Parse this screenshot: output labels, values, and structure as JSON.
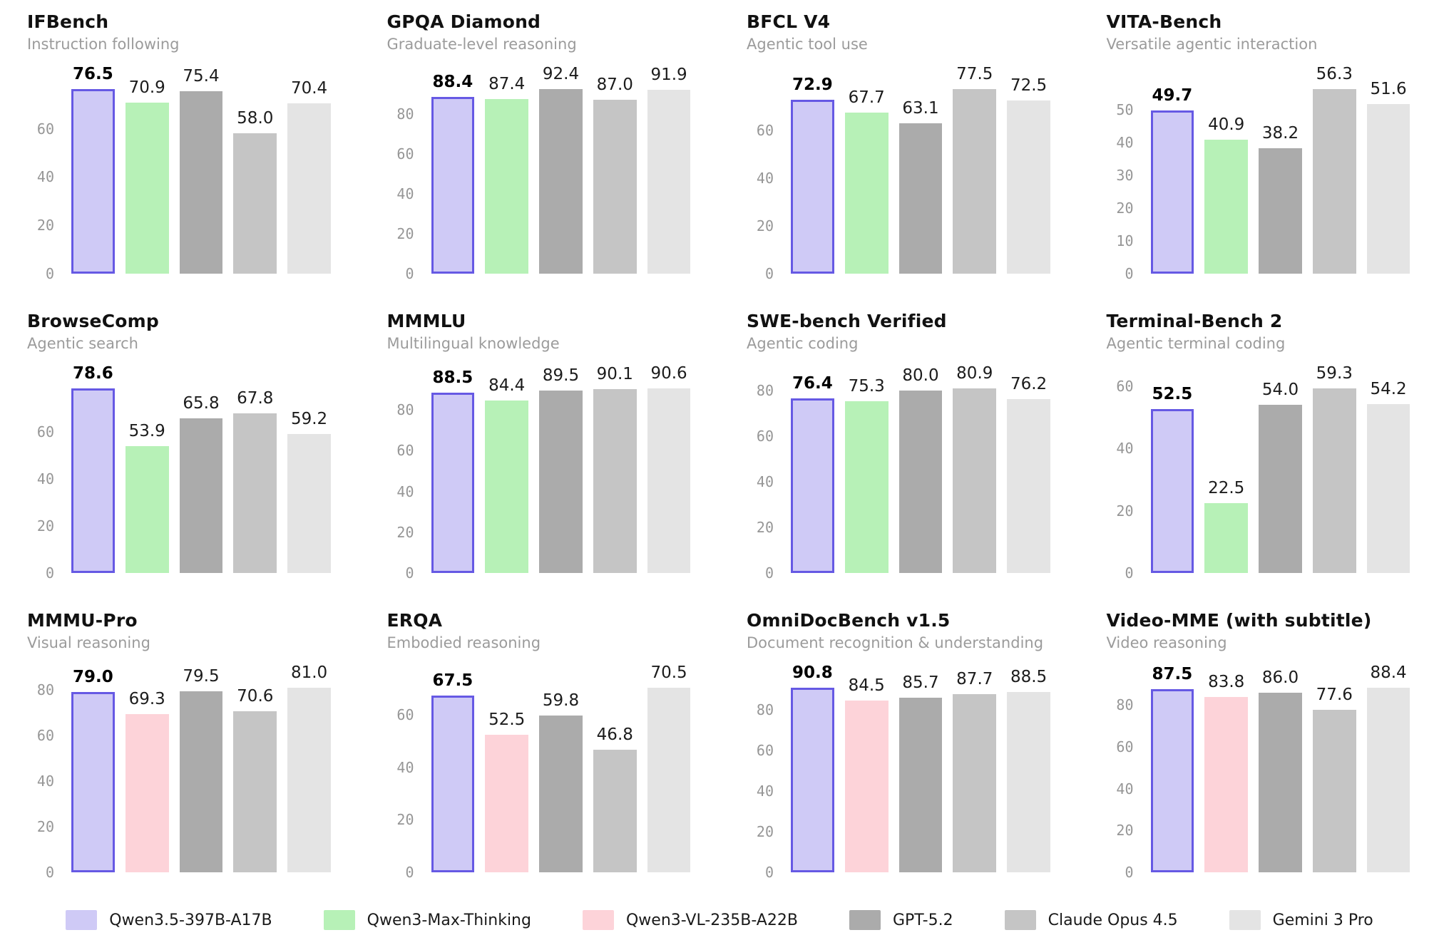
{
  "colors": {
    "Qwen3.5-397B-A17B": {
      "fill": "#cfcaf6",
      "edge": "#6659e4"
    },
    "Qwen3-Max-Thinking": {
      "fill": "#b7f1b7"
    },
    "Qwen3-VL-235B-A22B": {
      "fill": "#fdd3d9"
    },
    "GPT-5.2": {
      "fill": "#ababab"
    },
    "Claude Opus 4.5": {
      "fill": "#c5c5c5"
    },
    "Gemini 3 Pro": {
      "fill": "#e4e4e4"
    }
  },
  "legend": {
    "items": [
      {
        "label": "Qwen3.5-397B-A17B"
      },
      {
        "label": "Qwen3-Max-Thinking"
      },
      {
        "label": "Qwen3-VL-235B-A22B"
      },
      {
        "label": "GPT-5.2"
      },
      {
        "label": "Claude Opus 4.5"
      },
      {
        "label": "Gemini 3 Pro"
      }
    ]
  },
  "chart_data": [
    {
      "type": "bar",
      "title": "IFBench",
      "subtitle": "Instruction following",
      "yticks": [
        0,
        20,
        40,
        60
      ],
      "grid": false,
      "highlight": "Qwen3.5-397B-A17B",
      "categories": [
        "Qwen3.5-397B-A17B",
        "Qwen3-Max-Thinking",
        "GPT-5.2",
        "Claude Opus 4.5",
        "Gemini 3 Pro"
      ],
      "values": [
        76.5,
        70.9,
        75.4,
        58.0,
        70.4
      ]
    },
    {
      "type": "bar",
      "title": "GPQA Diamond",
      "subtitle": "Graduate-level reasoning",
      "yticks": [
        0,
        20,
        40,
        60,
        80
      ],
      "grid": false,
      "highlight": "Qwen3.5-397B-A17B",
      "categories": [
        "Qwen3.5-397B-A17B",
        "Qwen3-Max-Thinking",
        "GPT-5.2",
        "Claude Opus 4.5",
        "Gemini 3 Pro"
      ],
      "values": [
        88.4,
        87.4,
        92.4,
        87.0,
        91.9
      ]
    },
    {
      "type": "bar",
      "title": "BFCL V4",
      "subtitle": "Agentic tool use",
      "yticks": [
        0,
        20,
        40,
        60
      ],
      "grid": false,
      "highlight": "Qwen3.5-397B-A17B",
      "categories": [
        "Qwen3.5-397B-A17B",
        "Qwen3-Max-Thinking",
        "GPT-5.2",
        "Claude Opus 4.5",
        "Gemini 3 Pro"
      ],
      "values": [
        72.9,
        67.7,
        63.1,
        77.5,
        72.5
      ]
    },
    {
      "type": "bar",
      "title": "VITA-Bench",
      "subtitle": "Versatile agentic interaction",
      "yticks": [
        0,
        10,
        20,
        30,
        40,
        50
      ],
      "grid": false,
      "highlight": "Qwen3.5-397B-A17B",
      "categories": [
        "Qwen3.5-397B-A17B",
        "Qwen3-Max-Thinking",
        "GPT-5.2",
        "Claude Opus 4.5",
        "Gemini 3 Pro"
      ],
      "values": [
        49.7,
        40.9,
        38.2,
        56.3,
        51.6
      ]
    },
    {
      "type": "bar",
      "title": "BrowseComp",
      "subtitle": "Agentic search",
      "yticks": [
        0,
        20,
        40,
        60
      ],
      "grid": false,
      "highlight": "Qwen3.5-397B-A17B",
      "categories": [
        "Qwen3.5-397B-A17B",
        "Qwen3-Max-Thinking",
        "GPT-5.2",
        "Claude Opus 4.5",
        "Gemini 3 Pro"
      ],
      "values": [
        78.6,
        53.9,
        65.8,
        67.8,
        59.2
      ]
    },
    {
      "type": "bar",
      "title": "MMMLU",
      "subtitle": "Multilingual knowledge",
      "yticks": [
        0,
        20,
        40,
        60,
        80
      ],
      "grid": false,
      "highlight": "Qwen3.5-397B-A17B",
      "categories": [
        "Qwen3.5-397B-A17B",
        "Qwen3-Max-Thinking",
        "GPT-5.2",
        "Claude Opus 4.5",
        "Gemini 3 Pro"
      ],
      "values": [
        88.5,
        84.4,
        89.5,
        90.1,
        90.6
      ]
    },
    {
      "type": "bar",
      "title": "SWE-bench Verified",
      "subtitle": "Agentic coding",
      "yticks": [
        0,
        20,
        40,
        60,
        80
      ],
      "grid": false,
      "highlight": "Qwen3.5-397B-A17B",
      "categories": [
        "Qwen3.5-397B-A17B",
        "Qwen3-Max-Thinking",
        "GPT-5.2",
        "Claude Opus 4.5",
        "Gemini 3 Pro"
      ],
      "values": [
        76.4,
        75.3,
        80.0,
        80.9,
        76.2
      ]
    },
    {
      "type": "bar",
      "title": "Terminal-Bench 2",
      "subtitle": "Agentic terminal coding",
      "yticks": [
        0,
        20,
        40,
        60
      ],
      "grid": false,
      "highlight": "Qwen3.5-397B-A17B",
      "categories": [
        "Qwen3.5-397B-A17B",
        "Qwen3-Max-Thinking",
        "GPT-5.2",
        "Claude Opus 4.5",
        "Gemini 3 Pro"
      ],
      "values": [
        52.5,
        22.5,
        54.0,
        59.3,
        54.2
      ]
    },
    {
      "type": "bar",
      "title": "MMMU-Pro",
      "subtitle": "Visual reasoning",
      "yticks": [
        0,
        20,
        40,
        60,
        80
      ],
      "grid": false,
      "highlight": "Qwen3.5-397B-A17B",
      "categories": [
        "Qwen3.5-397B-A17B",
        "Qwen3-VL-235B-A22B",
        "GPT-5.2",
        "Claude Opus 4.5",
        "Gemini 3 Pro"
      ],
      "values": [
        79.0,
        69.3,
        79.5,
        70.6,
        81.0
      ]
    },
    {
      "type": "bar",
      "title": "ERQA",
      "subtitle": "Embodied reasoning",
      "yticks": [
        0,
        20,
        40,
        60
      ],
      "grid": false,
      "highlight": "Qwen3.5-397B-A17B",
      "categories": [
        "Qwen3.5-397B-A17B",
        "Qwen3-VL-235B-A22B",
        "GPT-5.2",
        "Claude Opus 4.5",
        "Gemini 3 Pro"
      ],
      "values": [
        67.5,
        52.5,
        59.8,
        46.8,
        70.5
      ]
    },
    {
      "type": "bar",
      "title": "OmniDocBench v1.5",
      "subtitle": "Document recognition & understanding",
      "yticks": [
        0,
        20,
        40,
        60,
        80
      ],
      "grid": false,
      "highlight": "Qwen3.5-397B-A17B",
      "categories": [
        "Qwen3.5-397B-A17B",
        "Qwen3-VL-235B-A22B",
        "GPT-5.2",
        "Claude Opus 4.5",
        "Gemini 3 Pro"
      ],
      "values": [
        90.8,
        84.5,
        85.7,
        87.7,
        88.5
      ]
    },
    {
      "type": "bar",
      "title": "Video-MME (with subtitle)",
      "subtitle": "Video reasoning",
      "yticks": [
        0,
        20,
        40,
        60,
        80
      ],
      "grid": false,
      "highlight": "Qwen3.5-397B-A17B",
      "categories": [
        "Qwen3.5-397B-A17B",
        "Qwen3-VL-235B-A22B",
        "GPT-5.2",
        "Claude Opus 4.5",
        "Gemini 3 Pro"
      ],
      "values": [
        87.5,
        83.8,
        86.0,
        77.6,
        88.4
      ]
    }
  ]
}
